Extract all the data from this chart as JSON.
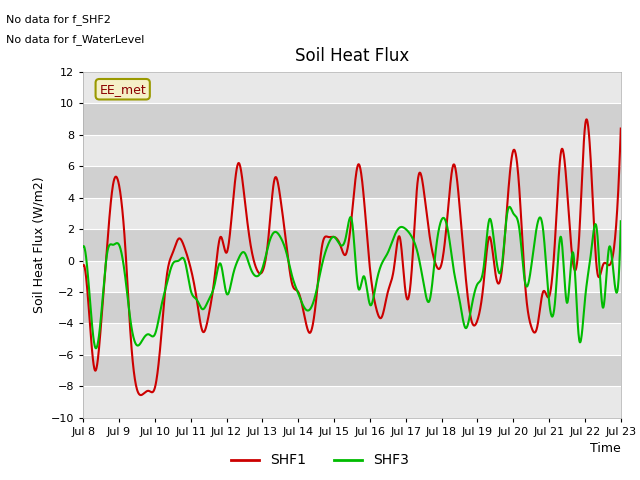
{
  "title": "Soil Heat Flux",
  "ylabel": "Soil Heat Flux (W/m2)",
  "xlabel": "Time",
  "ylim": [
    -10,
    12
  ],
  "yticks": [
    -10,
    -8,
    -6,
    -4,
    -2,
    0,
    2,
    4,
    6,
    8,
    10,
    12
  ],
  "no_data_text": [
    "No data for f_SHF2",
    "No data for f_WaterLevel"
  ],
  "legend_box_label": "EE_met",
  "xtick_labels": [
    "Jul 8",
    "Jul 9",
    "Jul 10",
    "Jul 11",
    "Jul 12",
    "Jul 13",
    "Jul 14",
    "Jul 15",
    "Jul 16",
    "Jul 17",
    "Jul 18",
    "Jul 19",
    "Jul 20",
    "Jul 21",
    "Jul 22",
    "Jul 23"
  ],
  "band_colors": [
    "#e8e8e8",
    "#d0d0d0"
  ],
  "shf1_color": "#cc0000",
  "shf3_color": "#00bb00",
  "shf1_label": "SHF1",
  "shf3_label": "SHF3",
  "shf1_x": [
    0.0,
    0.17,
    0.33,
    0.5,
    0.67,
    0.83,
    1.0,
    1.17,
    1.33,
    1.5,
    1.67,
    1.83,
    2.0,
    2.17,
    2.33,
    2.5,
    2.67,
    2.83,
    3.0,
    3.17,
    3.33,
    3.5,
    3.67,
    3.83,
    4.0,
    4.17,
    4.33,
    4.5,
    4.67,
    4.83,
    5.0,
    5.17,
    5.33,
    5.5,
    5.67,
    5.83,
    6.0,
    6.17,
    6.33,
    6.5,
    6.67,
    6.83,
    7.0,
    7.17,
    7.33,
    7.5,
    7.67,
    7.83,
    8.0,
    8.17,
    8.33,
    8.5,
    8.67,
    8.83,
    9.0,
    9.17,
    9.33,
    9.5,
    9.67,
    9.83,
    10.0,
    10.17,
    10.33,
    10.5,
    10.67,
    10.83,
    11.0,
    11.17,
    11.33,
    11.5,
    11.67,
    11.83,
    12.0,
    12.17,
    12.33,
    12.5,
    12.67,
    12.83,
    13.0,
    13.17,
    13.33,
    13.5,
    13.67,
    13.83,
    14.0,
    14.17,
    14.33,
    14.5,
    14.67,
    14.83,
    15.0
  ],
  "shf1_y": [
    -0.3,
    -3.5,
    -7.0,
    -4.0,
    1.0,
    4.8,
    4.8,
    1.0,
    -5.0,
    -8.2,
    -8.5,
    -8.3,
    -8.1,
    -5.0,
    -1.0,
    0.5,
    1.4,
    0.8,
    -0.5,
    -2.5,
    -4.5,
    -3.5,
    -1.0,
    1.5,
    0.5,
    3.5,
    6.2,
    4.0,
    1.0,
    -0.5,
    -0.7,
    1.5,
    5.1,
    4.0,
    1.0,
    -1.5,
    -2.0,
    -3.5,
    -4.6,
    -2.5,
    1.0,
    1.5,
    1.5,
    1.0,
    0.4,
    3.0,
    6.1,
    4.0,
    -0.5,
    -3.0,
    -3.6,
    -2.0,
    -0.5,
    1.5,
    -2.1,
    -0.5,
    5.0,
    4.5,
    1.5,
    -0.2,
    -0.2,
    3.0,
    6.1,
    3.5,
    -1.0,
    -3.8,
    -3.8,
    -1.5,
    1.5,
    -0.8,
    -0.8,
    3.5,
    7.0,
    4.5,
    -1.5,
    -4.2,
    -4.2,
    -2.0,
    -2.3,
    1.5,
    6.9,
    4.5,
    -0.2,
    1.2,
    8.5,
    6.0,
    -0.5,
    -0.3,
    -0.3,
    1.2,
    8.4
  ],
  "shf3_x": [
    0.0,
    0.17,
    0.33,
    0.5,
    0.67,
    0.83,
    1.0,
    1.17,
    1.33,
    1.5,
    1.67,
    1.83,
    2.0,
    2.17,
    2.33,
    2.5,
    2.67,
    2.83,
    3.0,
    3.17,
    3.33,
    3.5,
    3.67,
    3.83,
    4.0,
    4.17,
    4.33,
    4.5,
    4.67,
    4.83,
    5.0,
    5.17,
    5.33,
    5.5,
    5.67,
    5.83,
    6.0,
    6.17,
    6.33,
    6.5,
    6.67,
    6.83,
    7.0,
    7.17,
    7.33,
    7.5,
    7.67,
    7.83,
    8.0,
    8.17,
    8.33,
    8.5,
    8.67,
    8.83,
    9.0,
    9.17,
    9.33,
    9.5,
    9.67,
    9.83,
    10.0,
    10.17,
    10.33,
    10.5,
    10.67,
    10.83,
    11.0,
    11.17,
    11.33,
    11.5,
    11.67,
    11.83,
    12.0,
    12.17,
    12.33,
    12.5,
    12.67,
    12.83,
    13.0,
    13.17,
    13.33,
    13.5,
    13.67,
    13.83,
    14.0,
    14.17,
    14.33,
    14.5,
    14.67,
    14.83,
    15.0
  ],
  "shf3_y": [
    0.9,
    -2.0,
    -5.5,
    -3.5,
    0.5,
    1.0,
    1.0,
    -1.0,
    -4.0,
    -5.4,
    -5.0,
    -4.7,
    -4.7,
    -3.0,
    -1.5,
    -0.2,
    0.0,
    0.0,
    -1.9,
    -2.5,
    -3.1,
    -2.5,
    -1.5,
    -0.2,
    -2.1,
    -1.0,
    0.1,
    0.5,
    -0.5,
    -1.0,
    -0.5,
    1.0,
    1.8,
    1.5,
    0.5,
    -1.0,
    -2.1,
    -3.0,
    -3.1,
    -2.0,
    -0.2,
    1.0,
    1.5,
    1.0,
    1.5,
    2.5,
    -1.7,
    -1.0,
    -2.8,
    -1.5,
    -0.2,
    0.5,
    1.5,
    2.1,
    2.0,
    1.5,
    0.5,
    -1.5,
    -2.5,
    0.5,
    2.6,
    2.0,
    -0.5,
    -2.5,
    -4.3,
    -3.0,
    -1.5,
    -0.5,
    2.6,
    0.5,
    -0.5,
    3.0,
    3.0,
    2.0,
    -1.4,
    -0.4,
    2.3,
    2.0,
    -2.6,
    -2.5,
    1.5,
    -2.7,
    0.5,
    -4.9,
    -2.5,
    0.5,
    2.0,
    -3.0,
    0.8,
    -1.5,
    2.5
  ]
}
